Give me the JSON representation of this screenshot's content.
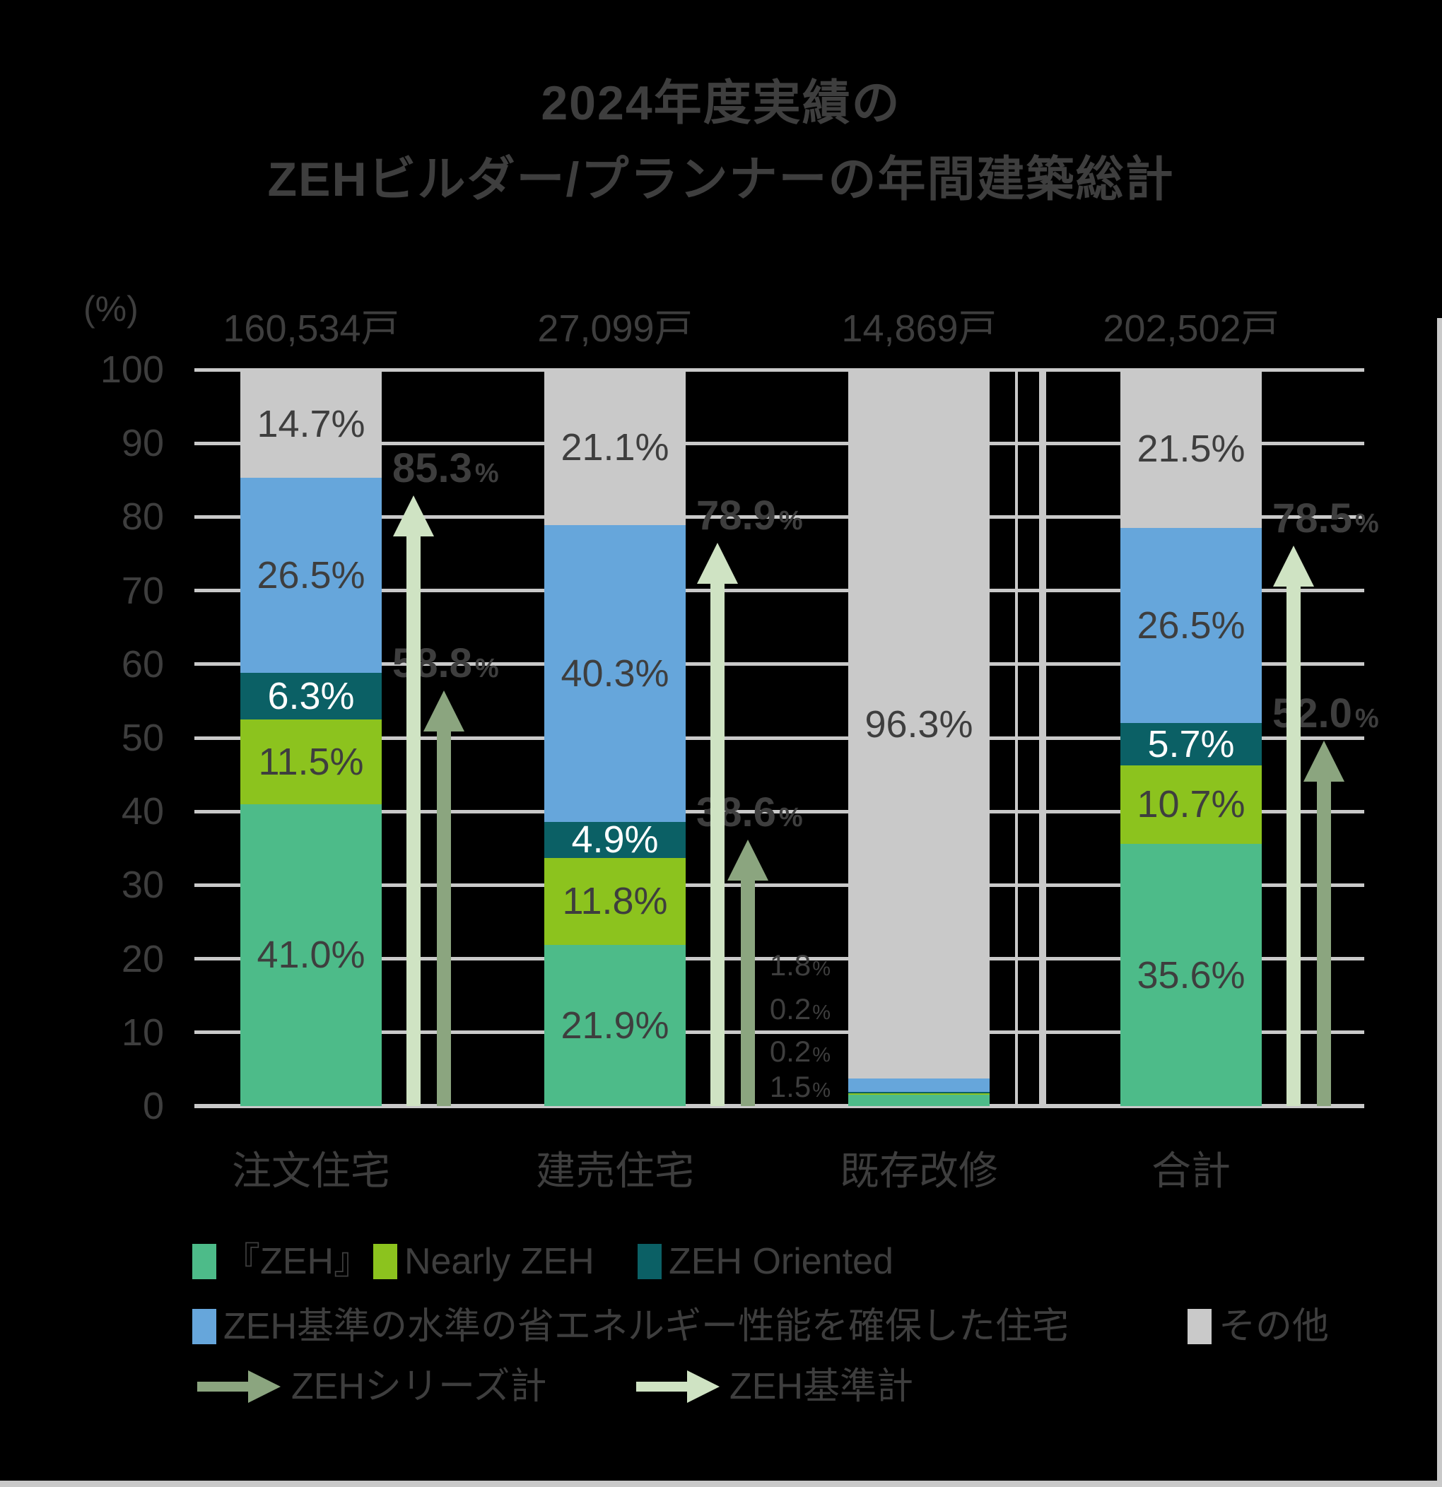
{
  "title": {
    "line1": "2024年度実績の",
    "line2": "ZEHビルダー/プランナーの年間建築総計"
  },
  "axes": {
    "unit": "(%)",
    "ylim": [
      0,
      100
    ],
    "yticks": [
      "100",
      "90",
      "80",
      "70",
      "60",
      "50",
      "40",
      "30",
      "20",
      "10",
      "0"
    ],
    "grid": "horizontal"
  },
  "colors": {
    "zeh": "#4dbb89",
    "nearly": "#8cc31e",
    "oriented": "#0b6065",
    "kijun": "#66a6db",
    "other": "#c9c9c9",
    "arrow_series": "#8ba57f",
    "arrow_kijun": "#cfe3c3",
    "text": "#3e3e3e",
    "grid_line": "#c9c9c9",
    "white_label": "#ffffff",
    "background": "#000000"
  },
  "chart_data": {
    "type": "bar",
    "stacked": true,
    "ylabel": "(%)",
    "ylim": [
      0,
      100
    ],
    "series_order": [
      "zeh",
      "nearly",
      "oriented",
      "kijun",
      "other"
    ],
    "series_names": {
      "zeh": "『ZEH』",
      "nearly": "Nearly ZEH",
      "oriented": "ZEH Oriented",
      "kijun": "ZEH基準の水準の省エネルギー性能を確保した住宅",
      "other": "その他"
    },
    "categories": [
      {
        "label": "注文住宅",
        "count": "160,534戸",
        "segments": [
          {
            "key": "zeh",
            "value": 41.0,
            "label": "41.0%"
          },
          {
            "key": "nearly",
            "value": 11.5,
            "label": "11.5%"
          },
          {
            "key": "oriented",
            "value": 6.3,
            "label": "6.3%"
          },
          {
            "key": "kijun",
            "value": 26.5,
            "label": "26.5%"
          },
          {
            "key": "other",
            "value": 14.7,
            "label": "14.7%"
          }
        ],
        "arrows": {
          "series": {
            "value": 58.8,
            "num": "58.8",
            "sym": "%"
          },
          "kijun": {
            "value": 85.3,
            "num": "85.3",
            "sym": "%"
          }
        }
      },
      {
        "label": "建売住宅",
        "count": "27,099戸",
        "segments": [
          {
            "key": "zeh",
            "value": 21.9,
            "label": "21.9%"
          },
          {
            "key": "nearly",
            "value": 11.8,
            "label": "11.8%"
          },
          {
            "key": "oriented",
            "value": 4.9,
            "label": "4.9%"
          },
          {
            "key": "kijun",
            "value": 40.3,
            "label": "40.3%"
          },
          {
            "key": "other",
            "value": 21.1,
            "label": "21.1%"
          }
        ],
        "arrows": {
          "series": {
            "value": 38.6,
            "num": "38.6",
            "sym": "%"
          },
          "kijun": {
            "value": 78.9,
            "num": "78.9",
            "sym": "%"
          }
        }
      },
      {
        "label": "既存改修",
        "count": "14,869戸",
        "segments": [
          {
            "key": "zeh",
            "value": 1.5,
            "out": {
              "num": "1.5",
              "sym": "%"
            }
          },
          {
            "key": "nearly",
            "value": 0.2,
            "out": {
              "num": "0.2",
              "sym": "%"
            }
          },
          {
            "key": "oriented",
            "value": 0.2,
            "out": {
              "num": "0.2",
              "sym": "%"
            }
          },
          {
            "key": "kijun",
            "value": 1.8,
            "out": {
              "num": "1.8",
              "sym": "%"
            }
          },
          {
            "key": "other",
            "value": 96.3,
            "label": "96.3%"
          }
        ],
        "arrows": null
      },
      {
        "label": "合計",
        "count": "202,502戸",
        "segments": [
          {
            "key": "zeh",
            "value": 35.6,
            "label": "35.6%"
          },
          {
            "key": "nearly",
            "value": 10.7,
            "label": "10.7%"
          },
          {
            "key": "oriented",
            "value": 5.7,
            "label": "5.7%"
          },
          {
            "key": "kijun",
            "value": 26.5,
            "label": "26.5%"
          },
          {
            "key": "other",
            "value": 21.5,
            "label": "21.5%"
          }
        ],
        "arrows": {
          "series": {
            "value": 52.0,
            "num": "52.0",
            "sym": "%"
          },
          "kijun": {
            "value": 78.5,
            "num": "78.5",
            "sym": "%"
          }
        }
      }
    ],
    "legend": {
      "row1": [
        {
          "key": "zeh",
          "label": "『ZEH』"
        },
        {
          "key": "nearly",
          "label": "Nearly ZEH"
        },
        {
          "key": "oriented",
          "label": "ZEH Oriented"
        }
      ],
      "row2": [
        {
          "key": "kijun",
          "label": "ZEH基準の水準の省エネルギー性能を確保した住宅"
        },
        {
          "key": "other",
          "label": "その他"
        }
      ],
      "row3": [
        {
          "key": "arrow_series",
          "label": "ZEHシリーズ計"
        },
        {
          "key": "arrow_kijun",
          "label": "ZEH基準計"
        }
      ]
    }
  }
}
